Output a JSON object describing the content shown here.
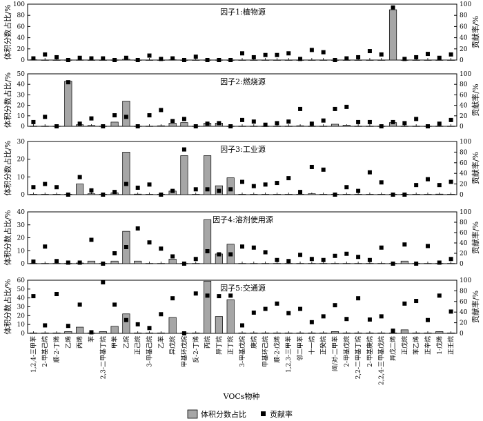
{
  "figure": {
    "xlabel": "VOCs物种",
    "legend": [
      {
        "label": "体积分数占比",
        "marker": "bar",
        "color": "#a6a6a6"
      },
      {
        "label": "贡献率",
        "marker": "square",
        "color": "#000000"
      }
    ]
  },
  "chart_data": [
    {
      "type": "bar",
      "title": "因子1:植物源",
      "ylabel": "体积分数占比/%",
      "y2label": "贡献率/%",
      "ylim": [
        0,
        100
      ],
      "yticks": [
        0,
        20,
        40,
        60,
        80,
        100
      ],
      "y2lim": [
        0,
        100
      ],
      "y2ticks": [
        0,
        20,
        40,
        60,
        80,
        100
      ],
      "categories": [
        "1,2,4-三甲苯",
        "2-甲基己烷",
        "顺-2-丁烯",
        "乙烯",
        "丙烯",
        "苯",
        "2,3-二甲基丁烷",
        "甲苯",
        "乙烷",
        "正己烷",
        "3-甲基己烷",
        "乙苯",
        "异戊烷",
        "甲基环戊烷",
        "反-2-丁烯",
        "丙烷",
        "异丁烷",
        "正丁烷",
        "3-甲基戊烷",
        "庚烷",
        "甲基环己烷",
        "顺-2-戊烯",
        "1,2,3-三甲苯",
        "邻二甲苯",
        "十一烷",
        "正癸烷",
        "间/对-二甲苯",
        "2-甲基戊烷",
        "2,2-二甲基丁烷",
        "2-甲基庚烷",
        "2,2,4-三甲基戊烷",
        "异戊二烯",
        "正戊烷",
        "苯乙烯",
        "正辛烷",
        "1-戊烯",
        "正壬烷"
      ],
      "series": [
        {
          "name": "体积分数占比",
          "values": [
            0.5,
            0.2,
            0.2,
            0.3,
            0.3,
            0.2,
            0.2,
            0.3,
            1.5,
            0.2,
            0.2,
            0.2,
            0.5,
            0.2,
            0.2,
            0.3,
            0.3,
            0.2,
            0.2,
            0.2,
            0.2,
            0.2,
            0.2,
            0.2,
            0.2,
            0.2,
            0.2,
            0.2,
            0.2,
            0.2,
            0.2,
            90,
            0.2,
            0.2,
            0.2,
            0.2,
            0.2
          ]
        },
        {
          "name": "贡献率",
          "values": [
            3,
            10,
            5,
            0,
            4,
            3,
            3,
            0,
            4,
            0,
            8,
            2,
            3,
            0,
            6,
            0,
            0,
            0,
            12,
            5,
            9,
            9,
            12,
            2,
            18,
            14,
            0,
            3,
            5,
            16,
            10,
            94,
            2,
            5,
            11,
            4,
            10
          ]
        }
      ]
    },
    {
      "type": "bar",
      "title": "因子2:燃烧源",
      "ylabel": "体积分数占比/%",
      "y2label": "贡献率/%",
      "ylim": [
        0,
        50
      ],
      "yticks": [
        0,
        10,
        20,
        30,
        40,
        50
      ],
      "y2lim": [
        0,
        100
      ],
      "y2ticks": [
        0,
        20,
        40,
        60,
        80,
        100
      ],
      "categories": [
        "1,2,4-三甲苯",
        "2-甲基己烷",
        "顺-2-丁烯",
        "乙烯",
        "丙烯",
        "苯",
        "2,3-二甲基丁烷",
        "甲苯",
        "乙烷",
        "正己烷",
        "3-甲基己烷",
        "乙苯",
        "异戊烷",
        "甲基环戊烷",
        "反-2-丁烯",
        "丙烷",
        "异丁烷",
        "正丁烷",
        "3-甲基戊烷",
        "庚烷",
        "甲基环己烷",
        "顺-2-戊烯",
        "1,2,3-三甲苯",
        "邻二甲苯",
        "十一烷",
        "正癸烷",
        "间/对-二甲苯",
        "2-甲基戊烷",
        "2,2-二甲基丁烷",
        "2-甲基庚烷",
        "2,2,4-三甲基戊烷",
        "异戊二烯",
        "正戊烷",
        "苯乙烯",
        "正辛烷",
        "1-戊烯",
        "正壬烷"
      ],
      "series": [
        {
          "name": "体积分数占比",
          "values": [
            0.2,
            0.2,
            0.2,
            43,
            1.5,
            0.8,
            0.2,
            4,
            24,
            0.2,
            0.2,
            0.5,
            3,
            3.5,
            0.2,
            3,
            3,
            0.2,
            0.2,
            0.2,
            0.2,
            0.2,
            0.2,
            0.5,
            0.2,
            0.2,
            2,
            1,
            0.2,
            0.2,
            0.2,
            3.5,
            0.2,
            0.2,
            0.2,
            0.2,
            0.2
          ]
        },
        {
          "name": "贡献率",
          "values": [
            8,
            18,
            0,
            84,
            5,
            15,
            0,
            21,
            18,
            0,
            21,
            31,
            10,
            14,
            0,
            5,
            6,
            0,
            12,
            9,
            3,
            6,
            9,
            33,
            5,
            11,
            33,
            37,
            8,
            8,
            0,
            8,
            6,
            14,
            0,
            5,
            12
          ]
        }
      ]
    },
    {
      "type": "bar",
      "title": "因子3:工业源",
      "ylabel": "体积分数占比/%",
      "y2label": "贡献率/%",
      "ylim": [
        0,
        30
      ],
      "yticks": [
        0,
        10,
        20,
        30
      ],
      "y2lim": [
        0,
        100
      ],
      "y2ticks": [
        0,
        20,
        40,
        60,
        80,
        100
      ],
      "categories": [
        "1,2,4-三甲苯",
        "2-甲基己烷",
        "顺-2-丁烯",
        "乙烯",
        "丙烯",
        "苯",
        "2,3-二甲基丁烷",
        "甲苯",
        "乙烷",
        "正己烷",
        "3-甲基己烷",
        "乙苯",
        "异戊烷",
        "甲基环戊烷",
        "反-2-丁烯",
        "丙烷",
        "异丁烷",
        "正丁烷",
        "3-甲基戊烷",
        "庚烷",
        "甲基环己烷",
        "顺-2-戊烯",
        "1,2,3-三甲苯",
        "邻二甲苯",
        "十一烷",
        "正癸烷",
        "间/对-二甲苯",
        "2-甲基戊烷",
        "2,2-二甲基丁烷",
        "2-甲基庚烷",
        "2,2,4-三甲基戊烷",
        "异戊二烯",
        "正戊烷",
        "苯乙烯",
        "正辛烷",
        "1-戊烯",
        "正壬烷"
      ],
      "series": [
        {
          "name": "体积分数占比",
          "values": [
            0.2,
            0.2,
            0.2,
            0.2,
            6,
            0.5,
            0.2,
            1,
            24,
            0.3,
            0.2,
            0.2,
            2,
            22,
            0.2,
            22,
            5,
            9.5,
            0.2,
            0.2,
            0.2,
            0.2,
            0.2,
            0.2,
            0.5,
            0.2,
            0.2,
            0.2,
            0.2,
            0.2,
            0.2,
            0.2,
            0.2,
            0.2,
            0.2,
            0.3,
            0.2
          ]
        },
        {
          "name": "贡献率",
          "values": [
            14,
            20,
            14,
            0,
            33,
            8,
            0,
            5,
            20,
            13,
            19,
            0,
            7,
            85,
            10,
            10,
            7,
            10,
            24,
            16,
            19,
            22,
            31,
            5,
            52,
            47,
            0,
            14,
            7,
            42,
            23,
            0,
            0,
            18,
            29,
            18,
            24
          ]
        }
      ]
    },
    {
      "type": "bar",
      "title": "因子4:溶剂使用源",
      "ylabel": "体积分数占比/%",
      "y2label": "贡献率/%",
      "ylim": [
        0,
        40
      ],
      "yticks": [
        0,
        10,
        20,
        30,
        40
      ],
      "y2lim": [
        0,
        100
      ],
      "y2ticks": [
        0,
        20,
        40,
        60,
        80,
        100
      ],
      "categories": [
        "1,2,4-三甲苯",
        "2-甲基己烷",
        "顺-2-丁烯",
        "乙烯",
        "丙烯",
        "苯",
        "2,3-二甲基丁烷",
        "甲苯",
        "乙烷",
        "正己烷",
        "3-甲基己烷",
        "乙苯",
        "异戊烷",
        "甲基环戊烷",
        "反-2-丁烯",
        "丙烷",
        "异丁烷",
        "正丁烷",
        "3-甲基戊烷",
        "庚烷",
        "甲基环己烷",
        "顺-2-戊烯",
        "1,2,3-三甲苯",
        "邻二甲苯",
        "十一烷",
        "正癸烷",
        "间/对-二甲苯",
        "2-甲基戊烷",
        "2,2-二甲基丁烷",
        "2-甲基庚烷",
        "2,2,4-三甲基戊烷",
        "异戊二烯",
        "正戊烷",
        "苯乙烯",
        "正辛烷",
        "1-戊烯",
        "正壬烷"
      ],
      "series": [
        {
          "name": "体积分数占比",
          "values": [
            0.2,
            0.2,
            0.2,
            0.2,
            0.5,
            2,
            0.2,
            2,
            25,
            2,
            0.2,
            0.2,
            3.5,
            0.2,
            0.2,
            34,
            7.5,
            15,
            0.2,
            0.2,
            0.2,
            0.2,
            0.2,
            0.2,
            0.2,
            0.2,
            0.2,
            0.2,
            0.2,
            0.2,
            0.2,
            0.2,
            2,
            0.2,
            0.2,
            0.2,
            0.2
          ]
        },
        {
          "name": "贡献率",
          "values": [
            4,
            33,
            5,
            2,
            2,
            46,
            0,
            20,
            32,
            68,
            41,
            29,
            14,
            0,
            9,
            24,
            18,
            18,
            33,
            31,
            22,
            7,
            5,
            17,
            9,
            7,
            15,
            19,
            13,
            7,
            31,
            0,
            37,
            0,
            34,
            2,
            9
          ]
        }
      ]
    },
    {
      "type": "bar",
      "title": "因子5:交通源",
      "ylabel": "体积分数占比/%",
      "y2label": "贡献率/%",
      "ylim": [
        0,
        60
      ],
      "yticks": [
        0,
        10,
        20,
        30,
        40,
        50,
        60
      ],
      "y2lim": [
        0,
        100
      ],
      "y2ticks": [
        0,
        20,
        40,
        60,
        80,
        100
      ],
      "categories": [
        "1,2,4-三甲苯",
        "2-甲基己烷",
        "顺-2-丁烯",
        "乙烯",
        "丙烯",
        "苯",
        "2,3-二甲基丁烷",
        "甲苯",
        "乙烷",
        "正己烷",
        "3-甲基己烷",
        "乙苯",
        "异戊烷",
        "甲基环戊烷",
        "反-2-丁烯",
        "丙烷",
        "异丁烷",
        "正丁烷",
        "3-甲基戊烷",
        "庚烷",
        "甲基环己烷",
        "顺-2-戊烯",
        "1,2,3-三甲苯",
        "邻二甲苯",
        "十一烷",
        "正癸烷",
        "间/对-二甲苯",
        "2-甲基戊烷",
        "2,2-二甲基丁烷",
        "2-甲基庚烷",
        "2,2,4-三甲基戊烷",
        "异戊二烯",
        "正戊烷",
        "苯乙烯",
        "正辛烷",
        "1-戊烯",
        "正壬烷"
      ],
      "series": [
        {
          "name": "体积分数占比",
          "values": [
            0.5,
            0.5,
            0.5,
            2,
            7,
            0.5,
            2,
            8,
            22,
            0.5,
            0.5,
            0.5,
            18,
            0.5,
            0.5,
            59,
            19,
            38,
            0.5,
            0.5,
            0.5,
            0.5,
            0.5,
            0.5,
            0.5,
            0.5,
            2,
            0.5,
            0.5,
            0.5,
            0.5,
            0.5,
            4,
            0.5,
            0.5,
            2,
            0.5
          ]
        },
        {
          "name": "贡献率",
          "values": [
            70,
            15,
            74,
            14,
            54,
            2,
            96,
            54,
            25,
            17,
            10,
            36,
            66,
            0,
            75,
            71,
            70,
            71,
            15,
            39,
            46,
            56,
            38,
            46,
            21,
            32,
            53,
            27,
            66,
            26,
            32,
            5,
            56,
            61,
            25,
            71,
            41
          ]
        }
      ]
    }
  ]
}
